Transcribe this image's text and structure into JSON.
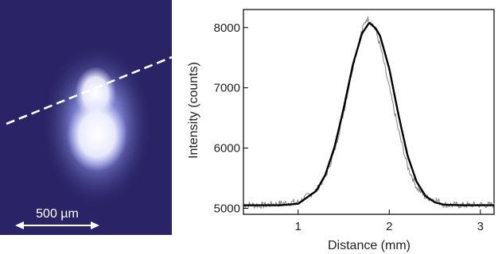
{
  "image_panel": {
    "scale_bar_label": "500 µm",
    "background_color": "#2a2466",
    "glow_color": "#7b84e6",
    "core_color": "#ffffff",
    "line_profile": "dashed white line across the spot"
  },
  "chart_data": {
    "type": "line",
    "xlabel": "Distance (mm)",
    "ylabel": "Intensity (counts)",
    "xlim": [
      0.4,
      3.15
    ],
    "ylim": [
      4900,
      8300
    ],
    "x_ticks": [
      1,
      2,
      3
    ],
    "y_ticks": [
      5000,
      6000,
      7000,
      8000
    ],
    "grid": false,
    "series": [
      {
        "style": "noisy measured profile",
        "color": "#808080",
        "x": [
          0.4,
          0.6,
          0.8,
          1.0,
          1.2,
          1.3,
          1.4,
          1.5,
          1.6,
          1.7,
          1.75,
          1.8,
          1.85,
          1.9,
          2.0,
          2.1,
          2.2,
          2.3,
          2.4,
          2.5,
          2.6,
          2.8,
          3.0,
          3.15
        ],
        "values": [
          5060,
          5050,
          5080,
          5100,
          5300,
          5520,
          5950,
          6600,
          7350,
          7950,
          8150,
          8120,
          7950,
          7700,
          7000,
          6300,
          5700,
          5350,
          5180,
          5150,
          5060,
          5050,
          5060,
          5050
        ]
      },
      {
        "style": "smooth Gaussian fit",
        "color": "#000000",
        "x": [
          0.4,
          0.6,
          0.8,
          1.0,
          1.2,
          1.3,
          1.4,
          1.5,
          1.6,
          1.7,
          1.78,
          1.85,
          1.9,
          2.0,
          2.1,
          2.2,
          2.3,
          2.4,
          2.5,
          2.6,
          2.8,
          3.0,
          3.15
        ],
        "values": [
          5050,
          5050,
          5050,
          5075,
          5290,
          5560,
          6020,
          6660,
          7380,
          7900,
          8080,
          7990,
          7860,
          7320,
          6560,
          5880,
          5440,
          5200,
          5100,
          5060,
          5050,
          5050,
          5050
        ]
      }
    ]
  }
}
